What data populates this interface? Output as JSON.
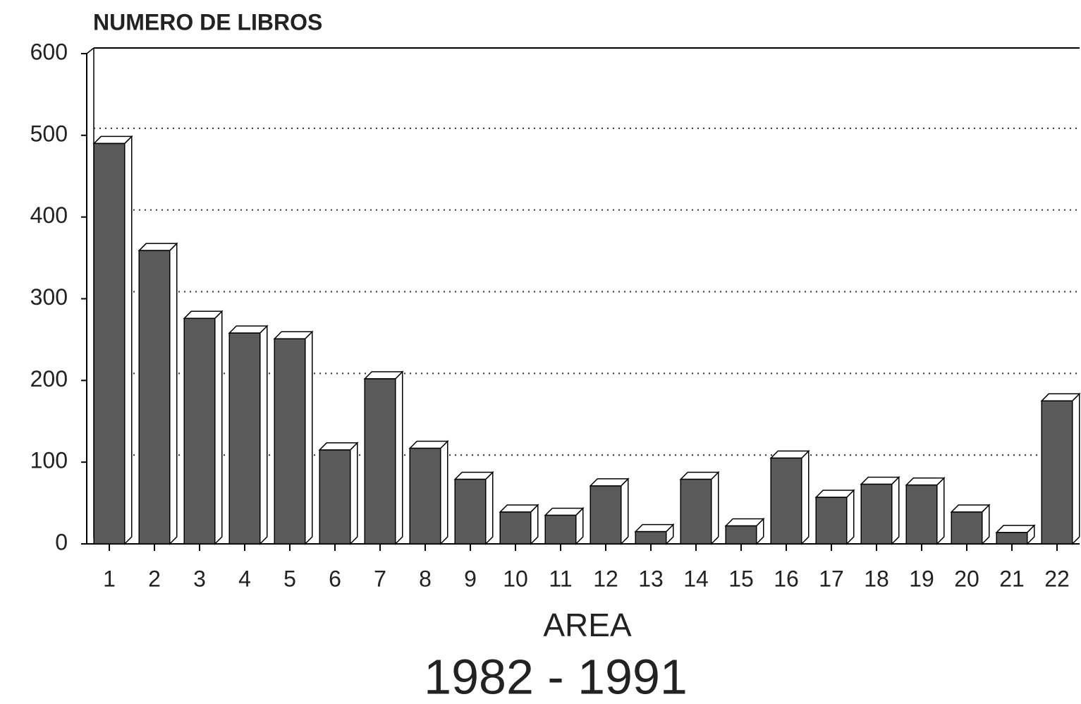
{
  "chart_data": {
    "type": "bar",
    "title": "NUMERO DE LIBROS",
    "x_label": "AREA",
    "subtitle": "1982 - 1991",
    "categories": [
      "1",
      "2",
      "3",
      "4",
      "5",
      "6",
      "7",
      "8",
      "9",
      "10",
      "11",
      "12",
      "13",
      "14",
      "15",
      "16",
      "17",
      "18",
      "19",
      "20",
      "21",
      "22"
    ],
    "values": [
      490,
      359,
      276,
      258,
      251,
      115,
      202,
      117,
      79,
      39,
      35,
      71,
      15,
      79,
      22,
      105,
      57,
      73,
      72,
      39,
      14,
      175
    ],
    "color": "#5a5a5a",
    "ylim": [
      0,
      600
    ],
    "yticks": [
      0,
      100,
      200,
      300,
      400,
      500,
      600
    ],
    "grid": true
  }
}
